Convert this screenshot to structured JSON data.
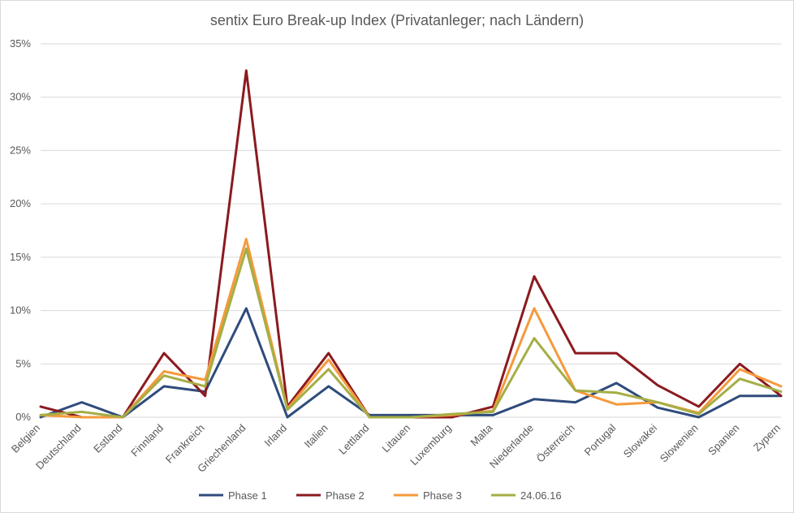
{
  "chart_data": {
    "type": "line",
    "title": "sentix Euro Break-up Index (Privatanleger; nach Ländern)",
    "xlabel": "",
    "ylabel": "",
    "ylim": [
      0,
      35
    ],
    "yticks": [
      "0%",
      "5%",
      "10%",
      "15%",
      "20%",
      "25%",
      "30%",
      "35%"
    ],
    "grid": true,
    "legend_position": "bottom",
    "categories": [
      "Belgien",
      "Deutschland",
      "Estland",
      "Finnland",
      "Frankreich",
      "Griechenland",
      "Irland",
      "Italien",
      "Lettland",
      "Litauen",
      "Luxemburg",
      "Malta",
      "Niederlande",
      "Österreich",
      "Portugal",
      "Slowakei",
      "Slowenien",
      "Spanien",
      "Zypern"
    ],
    "series": [
      {
        "name": "Phase 1",
        "color": "#2f4b7c",
        "values": [
          0.0,
          1.4,
          0.0,
          2.9,
          2.4,
          10.2,
          0.0,
          2.9,
          0.2,
          0.2,
          0.2,
          0.2,
          1.7,
          1.4,
          3.2,
          0.9,
          0.0,
          2.0,
          2.0
        ]
      },
      {
        "name": "Phase 2",
        "color": "#8b1a1f",
        "values": [
          1.0,
          0.0,
          0.0,
          6.0,
          2.0,
          32.5,
          1.0,
          6.0,
          0.0,
          0.0,
          0.0,
          1.0,
          13.2,
          6.0,
          6.0,
          3.0,
          1.0,
          5.0,
          2.0
        ]
      },
      {
        "name": "Phase 3",
        "color": "#f59a3c",
        "values": [
          0.2,
          0.0,
          0.0,
          4.3,
          3.5,
          16.7,
          0.8,
          5.4,
          0.0,
          0.0,
          0.2,
          0.6,
          10.2,
          2.5,
          1.2,
          1.4,
          0.4,
          4.5,
          2.9
        ]
      },
      {
        "name": "24.06.16",
        "color": "#a5ae45",
        "values": [
          0.2,
          0.5,
          0.0,
          3.9,
          2.9,
          15.8,
          0.7,
          4.5,
          0.0,
          0.0,
          0.3,
          0.5,
          7.4,
          2.5,
          2.3,
          1.4,
          0.3,
          3.6,
          2.4
        ]
      }
    ]
  }
}
